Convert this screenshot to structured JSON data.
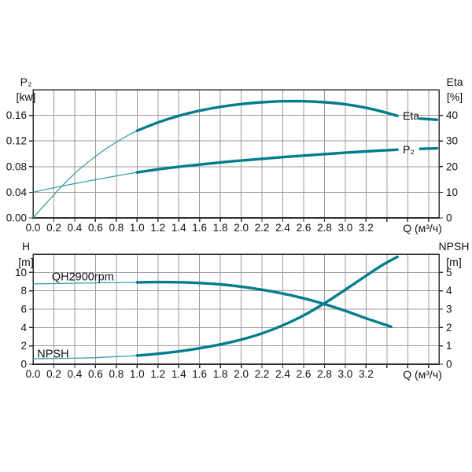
{
  "colors": {
    "curve_thick": "#007d8d",
    "curve_thin": "#2f99a6",
    "grid": "#9b9b9b",
    "border": "#2f2f2f",
    "text": "#111111",
    "background": "#ffffff"
  },
  "chart_data": [
    {
      "type": "line",
      "title": "",
      "xlabel": "Q (м³/ч)",
      "x": {
        "min": 0,
        "max": 3.9,
        "tick_step": 0.2,
        "labels": [
          "0.0",
          "0.2",
          "0.4",
          "0.6",
          "0.8",
          "1.0",
          "1.2",
          "1.4",
          "1.6",
          "1.8",
          "2.0",
          "2.2",
          "2.4",
          "2.6",
          "2.8",
          "3.0",
          "3.2"
        ]
      },
      "left_axis": {
        "title": [
          "P₂",
          "[kw]"
        ],
        "min": 0,
        "max": 0.2,
        "tick_values": [
          0,
          0.04,
          0.08,
          0.12,
          0.16
        ],
        "tick_labels": [
          "0.00",
          "0.04",
          "0.08",
          "0.12",
          "0.16"
        ]
      },
      "right_axis": {
        "title": [
          "Eta",
          "[%]"
        ],
        "min": 0,
        "max": 50,
        "tick_values": [
          0,
          10,
          20,
          30,
          40
        ],
        "tick_labels": [
          "0",
          "10",
          "20",
          "30",
          "40"
        ]
      },
      "series": [
        {
          "name": "eta-curve",
          "axis": "right",
          "end_label": "Eta",
          "thin": [
            [
              0,
              0
            ],
            [
              0.1,
              4.5
            ],
            [
              0.2,
              9
            ],
            [
              0.3,
              13.3
            ],
            [
              0.4,
              17.3
            ],
            [
              0.5,
              20.8
            ],
            [
              0.6,
              24
            ],
            [
              0.7,
              26.9
            ],
            [
              0.8,
              29.5
            ],
            [
              0.9,
              31.9
            ],
            [
              1.0,
              34
            ]
          ],
          "thick": [
            [
              1.0,
              34
            ],
            [
              1.2,
              37.2
            ],
            [
              1.4,
              39.8
            ],
            [
              1.6,
              41.8
            ],
            [
              1.8,
              43.3
            ],
            [
              2.0,
              44.4
            ],
            [
              2.2,
              45.1
            ],
            [
              2.4,
              45.5
            ],
            [
              2.6,
              45.5
            ],
            [
              2.8,
              45.1
            ],
            [
              3.0,
              44.3
            ],
            [
              3.2,
              42.9
            ],
            [
              3.35,
              41.5
            ],
            [
              3.5,
              39.8
            ]
          ],
          "tail": [
            [
              3.72,
              38.7
            ],
            [
              3.88,
              38.3
            ]
          ]
        },
        {
          "name": "p2-curve",
          "axis": "left",
          "end_label": "P₂",
          "thin": [
            [
              0,
              0.04
            ],
            [
              0.2,
              0.047
            ],
            [
              0.4,
              0.0535
            ],
            [
              0.6,
              0.0595
            ],
            [
              0.8,
              0.0655
            ],
            [
              1.0,
              0.071
            ]
          ],
          "thick": [
            [
              1.0,
              0.071
            ],
            [
              1.2,
              0.0757
            ],
            [
              1.4,
              0.0797
            ],
            [
              1.6,
              0.0832
            ],
            [
              1.8,
              0.0865
            ],
            [
              2.0,
              0.0895
            ],
            [
              2.2,
              0.0922
            ],
            [
              2.4,
              0.0948
            ],
            [
              2.6,
              0.0972
            ],
            [
              2.8,
              0.0995
            ],
            [
              3.0,
              0.1017
            ],
            [
              3.2,
              0.1037
            ],
            [
              3.35,
              0.1051
            ],
            [
              3.5,
              0.1064
            ]
          ],
          "tail": [
            [
              3.72,
              0.1078
            ],
            [
              3.88,
              0.1085
            ]
          ]
        }
      ],
      "annotations": []
    },
    {
      "type": "line",
      "title": "",
      "xlabel": "Q (м³/ч)",
      "x": {
        "min": 0,
        "max": 3.9,
        "tick_step": 0.2,
        "labels": [
          "0.0",
          "0.2",
          "0.4",
          "0.6",
          "0.8",
          "1.0",
          "1.2",
          "1.4",
          "1.6",
          "1.8",
          "2.0",
          "2.2",
          "2.4",
          "2.6",
          "2.8",
          "3.0",
          "3.2"
        ]
      },
      "left_axis": {
        "title": [
          "H",
          "[m]"
        ],
        "min": 0,
        "max": 12,
        "tick_values": [
          0,
          2,
          4,
          6,
          8,
          10
        ],
        "tick_labels": [
          "0",
          "2",
          "4",
          "6",
          "8",
          "10"
        ]
      },
      "right_axis": {
        "title": [
          "NPSH",
          "[m]"
        ],
        "min": 0,
        "max": 6,
        "tick_values": [
          0,
          1,
          2,
          3,
          4,
          5
        ],
        "tick_labels": [
          "0",
          "1",
          "2",
          "3",
          "4",
          "5"
        ]
      },
      "series": [
        {
          "name": "h-curve",
          "axis": "left",
          "end_label": "",
          "thin": [
            [
              0,
              8.75
            ],
            [
              0.2,
              8.79
            ],
            [
              0.4,
              8.83
            ],
            [
              0.6,
              8.86
            ],
            [
              0.8,
              8.89
            ],
            [
              1.0,
              8.92
            ]
          ],
          "thick": [
            [
              1.0,
              8.92
            ],
            [
              1.2,
              8.95
            ],
            [
              1.4,
              8.93
            ],
            [
              1.6,
              8.85
            ],
            [
              1.8,
              8.7
            ],
            [
              2.0,
              8.45
            ],
            [
              2.2,
              8.12
            ],
            [
              2.4,
              7.7
            ],
            [
              2.6,
              7.18
            ],
            [
              2.8,
              6.55
            ],
            [
              3.0,
              5.82
            ],
            [
              3.2,
              5.0
            ],
            [
              3.44,
              4.1
            ]
          ],
          "tail": []
        },
        {
          "name": "npsh-curve",
          "axis": "right",
          "end_label": "",
          "thin": [
            [
              0,
              0.3
            ],
            [
              0.2,
              0.31
            ],
            [
              0.4,
              0.33
            ],
            [
              0.6,
              0.36
            ],
            [
              0.8,
              0.41
            ],
            [
              1.0,
              0.47
            ]
          ],
          "thick": [
            [
              1.0,
              0.47
            ],
            [
              1.2,
              0.57
            ],
            [
              1.4,
              0.7
            ],
            [
              1.6,
              0.87
            ],
            [
              1.8,
              1.08
            ],
            [
              2.0,
              1.34
            ],
            [
              2.2,
              1.68
            ],
            [
              2.4,
              2.12
            ],
            [
              2.6,
              2.66
            ],
            [
              2.8,
              3.32
            ],
            [
              3.0,
              4.06
            ],
            [
              3.2,
              4.82
            ],
            [
              3.35,
              5.38
            ],
            [
              3.5,
              5.85
            ]
          ],
          "tail": []
        }
      ],
      "annotations": [
        {
          "text": "QH2900rpm",
          "axis": "left",
          "q": 0.18,
          "v": 9.15
        },
        {
          "text": "NPSH",
          "axis": "left",
          "q": 0.04,
          "v": 0.72
        }
      ]
    }
  ]
}
